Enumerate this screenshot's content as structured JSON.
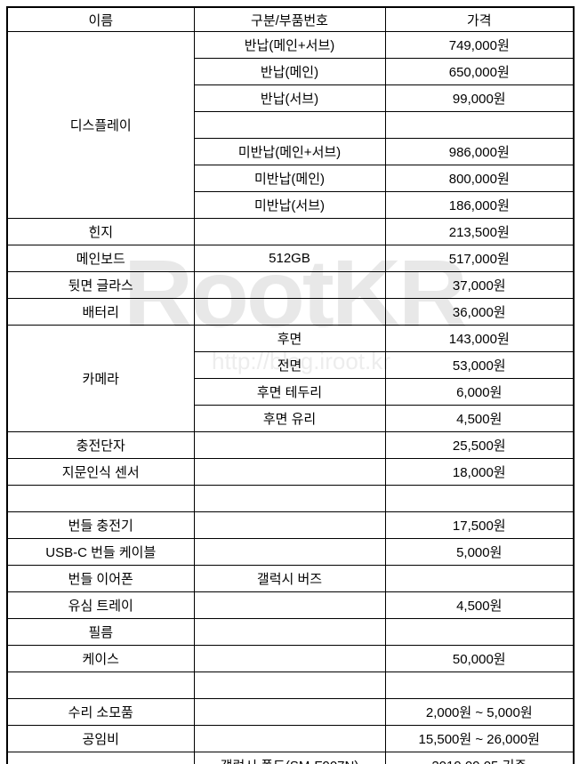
{
  "watermark": {
    "brand": "RootKR",
    "url": "http://blog.iroot.kr"
  },
  "table": {
    "header": [
      "이름",
      "구분/부품번호",
      "가격"
    ],
    "rows": [
      {
        "cells": [
          {
            "t": "디스플레이",
            "rs": 7
          },
          {
            "t": "반납(메인+서브)"
          },
          {
            "t": "749,000원"
          }
        ]
      },
      {
        "cells": [
          {
            "t": "반납(메인)"
          },
          {
            "t": "650,000원"
          }
        ]
      },
      {
        "cells": [
          {
            "t": "반납(서브)"
          },
          {
            "t": "99,000원"
          }
        ]
      },
      {
        "cells": [
          {
            "t": ""
          },
          {
            "t": ""
          }
        ]
      },
      {
        "cells": [
          {
            "t": "미반납(메인+서브)"
          },
          {
            "t": "986,000원"
          }
        ]
      },
      {
        "cells": [
          {
            "t": "미반납(메인)"
          },
          {
            "t": "800,000원"
          }
        ]
      },
      {
        "cells": [
          {
            "t": "미반납(서브)"
          },
          {
            "t": "186,000원"
          }
        ]
      },
      {
        "cells": [
          {
            "t": "힌지"
          },
          {
            "t": ""
          },
          {
            "t": "213,500원"
          }
        ]
      },
      {
        "cells": [
          {
            "t": "메인보드"
          },
          {
            "t": "512GB"
          },
          {
            "t": "517,000원"
          }
        ]
      },
      {
        "cells": [
          {
            "t": "뒷면 글라스"
          },
          {
            "t": ""
          },
          {
            "t": "37,000원"
          }
        ]
      },
      {
        "cells": [
          {
            "t": "배터리"
          },
          {
            "t": ""
          },
          {
            "t": "36,000원"
          }
        ]
      },
      {
        "cells": [
          {
            "t": "카메라",
            "rs": 4
          },
          {
            "t": "후면"
          },
          {
            "t": "143,000원"
          }
        ]
      },
      {
        "cells": [
          {
            "t": "전면"
          },
          {
            "t": "53,000원"
          }
        ]
      },
      {
        "cells": [
          {
            "t": "후면 테두리"
          },
          {
            "t": "6,000원"
          }
        ]
      },
      {
        "cells": [
          {
            "t": "후면 유리"
          },
          {
            "t": "4,500원"
          }
        ]
      },
      {
        "cells": [
          {
            "t": "충전단자"
          },
          {
            "t": ""
          },
          {
            "t": "25,500원"
          }
        ]
      },
      {
        "cells": [
          {
            "t": "지문인식 센서"
          },
          {
            "t": ""
          },
          {
            "t": "18,000원"
          }
        ]
      },
      {
        "cells": [
          {
            "t": ""
          },
          {
            "t": ""
          },
          {
            "t": ""
          }
        ]
      },
      {
        "cells": [
          {
            "t": "번들 충전기"
          },
          {
            "t": ""
          },
          {
            "t": "17,500원"
          }
        ]
      },
      {
        "cells": [
          {
            "t": "USB-C 번들 케이블"
          },
          {
            "t": ""
          },
          {
            "t": "5,000원"
          }
        ]
      },
      {
        "cells": [
          {
            "t": "번들 이어폰"
          },
          {
            "t": "갤럭시 버즈"
          },
          {
            "t": ""
          }
        ]
      },
      {
        "cells": [
          {
            "t": "유심 트레이"
          },
          {
            "t": ""
          },
          {
            "t": "4,500원"
          }
        ]
      },
      {
        "cells": [
          {
            "t": "필름"
          },
          {
            "t": ""
          },
          {
            "t": ""
          }
        ]
      },
      {
        "cells": [
          {
            "t": "케이스"
          },
          {
            "t": ""
          },
          {
            "t": "50,000원"
          }
        ]
      },
      {
        "cells": [
          {
            "t": ""
          },
          {
            "t": ""
          },
          {
            "t": ""
          }
        ]
      },
      {
        "cells": [
          {
            "t": "수리 소모품"
          },
          {
            "t": ""
          },
          {
            "t": "2,000원 ~ 5,000원"
          }
        ]
      },
      {
        "cells": [
          {
            "t": "공임비"
          },
          {
            "t": ""
          },
          {
            "t": "15,500원 ~ 26,000원"
          }
        ]
      },
      {
        "cells": [
          {
            "t": ""
          },
          {
            "t": "갤럭시 폴드(SM-F907N)"
          },
          {
            "t": "2019.09.05 기준"
          }
        ]
      }
    ]
  }
}
